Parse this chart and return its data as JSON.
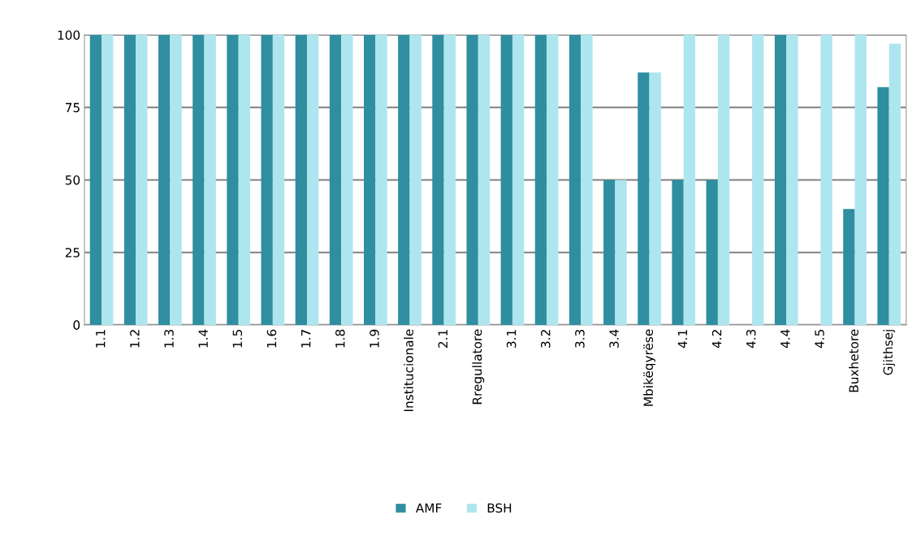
{
  "chart_data": {
    "type": "bar",
    "categories": [
      "1.1",
      "1.2",
      "1.3",
      "1.4",
      "1.5",
      "1.6",
      "1.7",
      "1.8",
      "1.9",
      "Institucionale",
      "2.1",
      "Rregullatore",
      "3.1",
      "3.2",
      "3.3",
      "3.4",
      "Mbikëqyrëse",
      "4.1",
      "4.2",
      "4.3",
      "4.4",
      "4.5",
      "Buxhetore",
      "Gjithsej"
    ],
    "series": [
      {
        "name": "AMF",
        "color": "#2f8ea0",
        "values": [
          100,
          100,
          100,
          100,
          100,
          100,
          100,
          100,
          100,
          100,
          100,
          100,
          100,
          100,
          100,
          50,
          87,
          50,
          50,
          0,
          100,
          0,
          40,
          82
        ]
      },
      {
        "name": "BSH",
        "color": "#aee6ef",
        "values": [
          100,
          100,
          100,
          100,
          100,
          100,
          100,
          100,
          100,
          100,
          100,
          100,
          100,
          100,
          100,
          50,
          87,
          100,
          100,
          100,
          100,
          100,
          100,
          97
        ]
      }
    ],
    "ylim": [
      0,
      100
    ],
    "yticks": [
      0,
      25,
      50,
      75,
      100
    ],
    "grid": "y",
    "legend": "bottom"
  }
}
